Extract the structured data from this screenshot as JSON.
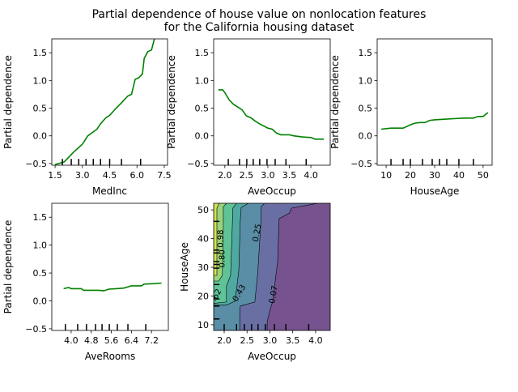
{
  "chart_data": {
    "title": [
      "Partial dependence of house value on nonlocation features",
      "for the California housing dataset"
    ],
    "panels": [
      {
        "type": "line",
        "xlabel": "MedInc",
        "ylabel": "Partial dependence",
        "xlim": [
          1.32,
          7.68
        ],
        "ylim": [
          -0.53,
          1.75
        ],
        "xticks": [
          "1.5",
          "3.0",
          "4.5",
          "6.0",
          "7.5"
        ],
        "yticks": [
          "-0.5",
          "0.0",
          "0.5",
          "1.0",
          "1.5"
        ],
        "color": "#008000",
        "x": [
          1.5,
          2.0,
          2.5,
          3.0,
          3.3,
          3.8,
          4.0,
          4.3,
          4.5,
          4.8,
          5.1,
          5.5,
          5.7,
          5.9,
          6.1,
          6.3,
          6.4,
          6.6,
          6.8,
          7.0
        ],
        "y": [
          -0.52,
          -0.47,
          -0.3,
          -0.15,
          0.0,
          0.12,
          0.22,
          0.33,
          0.37,
          0.48,
          0.58,
          0.72,
          0.75,
          1.02,
          1.05,
          1.12,
          1.4,
          1.52,
          1.55,
          1.8
        ],
        "deciles": [
          1.9,
          2.39,
          2.8,
          3.2,
          3.6,
          4.0,
          4.5,
          5.15,
          6.2
        ]
      },
      {
        "type": "line",
        "xlabel": "AveOccup",
        "ylabel": "Partial dependence",
        "xlim": [
          1.74,
          4.45
        ],
        "ylim": [
          -0.53,
          1.75
        ],
        "xticks": [
          "2.0",
          "2.5",
          "3.0",
          "3.5",
          "4.0"
        ],
        "yticks": [
          "-0.5",
          "0.0",
          "0.5",
          "1.0",
          "1.5"
        ],
        "color": "#008000",
        "x": [
          1.85,
          1.95,
          2.0,
          2.1,
          2.2,
          2.4,
          2.5,
          2.6,
          2.7,
          2.8,
          3.0,
          3.1,
          3.2,
          3.3,
          3.5,
          3.6,
          3.8,
          4.0,
          4.1,
          4.3
        ],
        "y": [
          0.83,
          0.83,
          0.78,
          0.65,
          0.57,
          0.47,
          0.36,
          0.33,
          0.27,
          0.22,
          0.14,
          0.12,
          0.05,
          0.02,
          0.02,
          0.0,
          -0.02,
          -0.03,
          -0.06,
          -0.06
        ],
        "deciles": [
          2.08,
          2.34,
          2.51,
          2.66,
          2.81,
          2.98,
          3.17,
          3.42,
          3.89
        ]
      },
      {
        "type": "line",
        "xlabel": "HouseAge",
        "ylabel": "Partial dependence",
        "xlim": [
          6.3,
          53.7
        ],
        "ylim": [
          -0.53,
          1.75
        ],
        "xticks": [
          "10",
          "20",
          "30",
          "40",
          "50"
        ],
        "yticks": [
          "-0.5",
          "0.0",
          "0.5",
          "1.0",
          "1.5"
        ],
        "color": "#008000",
        "x": [
          8,
          10,
          12,
          17,
          20,
          22,
          24,
          26,
          28,
          30,
          34,
          38,
          42,
          46,
          48,
          50,
          52
        ],
        "y": [
          0.12,
          0.13,
          0.14,
          0.14,
          0.2,
          0.23,
          0.24,
          0.24,
          0.28,
          0.29,
          0.3,
          0.31,
          0.32,
          0.32,
          0.35,
          0.35,
          0.42
        ],
        "deciles": [
          12,
          17,
          20,
          25,
          29,
          32,
          35,
          40,
          46
        ]
      },
      {
        "type": "line",
        "xlabel": "AveRooms",
        "ylabel": "Partial dependence",
        "xlim": [
          3.23,
          7.87
        ],
        "ylim": [
          -0.53,
          1.75
        ],
        "xticks": [
          "4.0",
          "4.8",
          "5.6",
          "6.4",
          "7.2"
        ],
        "yticks": [
          "-0.5",
          "0.0",
          "0.5",
          "1.0",
          "1.5"
        ],
        "color": "#008000",
        "x": [
          3.7,
          3.9,
          4.0,
          4.4,
          4.5,
          4.8,
          5.1,
          5.3,
          5.5,
          5.8,
          6.1,
          6.4,
          6.8,
          6.9,
          7.3,
          7.6
        ],
        "y": [
          0.22,
          0.24,
          0.22,
          0.22,
          0.19,
          0.19,
          0.19,
          0.18,
          0.21,
          0.22,
          0.23,
          0.27,
          0.27,
          0.3,
          0.31,
          0.32
        ],
        "deciles": [
          3.77,
          4.26,
          4.61,
          4.97,
          5.23,
          5.52,
          5.84,
          6.26,
          6.97
        ]
      },
      {
        "type": "contour",
        "xlabel": "AveOccup",
        "ylabel": "HouseAge",
        "xlim": [
          1.77,
          4.32
        ],
        "ylim": [
          8.0,
          52.3
        ],
        "xticks": [
          "2.0",
          "2.5",
          "3.0",
          "3.5",
          "4.0"
        ],
        "yticks": [
          "10",
          "20",
          "30",
          "40",
          "50"
        ],
        "base_color": "#76538f",
        "levels": [
          {
            "value": "0.07",
            "color": "#6a6fa3",
            "boundary": [
              [
                4.05,
                52.3
              ],
              [
                3.47,
                50.6
              ],
              [
                3.43,
                48.9
              ],
              [
                3.2,
                46.9
              ],
              [
                3.17,
                32
              ],
              [
                3.06,
                18
              ],
              [
                3.0,
                15
              ],
              [
                2.94,
                11
              ],
              [
                2.94,
                8
              ]
            ],
            "label_at": [
              3.08,
              20.5
            ]
          },
          {
            "value": "0.25",
            "color": "#5a8ea6",
            "boundary": [
              [
                2.88,
                52.3
              ],
              [
                2.81,
                51.1
              ],
              [
                2.8,
                44.9
              ],
              [
                2.73,
                27.2
              ],
              [
                2.67,
                17.9
              ],
              [
                2.35,
                16.5
              ],
              [
                2.34,
                14
              ],
              [
                2.34,
                8
              ]
            ],
            "label_at": [
              2.72,
              42
            ]
          },
          {
            "value": "0.43",
            "color": "#4fa9a0",
            "boundary": [
              [
                2.53,
                52.3
              ],
              [
                2.37,
                50.8
              ],
              [
                2.35,
                46
              ],
              [
                2.32,
                29.2
              ],
              [
                2.28,
                23.5
              ],
              [
                2.23,
                18.2
              ],
              [
                2.05,
                16.8
              ],
              [
                1.7,
                16.8
              ]
            ],
            "label_at": [
              2.33,
              21
            ]
          },
          {
            "value": "0.62",
            "color": "#60c398",
            "boundary": [
              [
                2.27,
                52.3
              ],
              [
                2.19,
                50.6
              ],
              [
                2.18,
                46
              ],
              [
                2.14,
                27.2
              ],
              [
                2.05,
                23.5
              ],
              [
                2.05,
                17.9
              ],
              [
                1.7,
                17.3
              ]
            ],
            "label_at": [
              1.8,
              19.5
            ]
          },
          {
            "value": "0.80",
            "color": "#98d47a",
            "boundary": [
              [
                2.05,
                52.3
              ],
              [
                1.98,
                51.1
              ],
              [
                1.98,
                44
              ],
              [
                1.96,
                27.2
              ],
              [
                1.88,
                25.2
              ],
              [
                1.7,
                25.2
              ]
            ],
            "label_at": [
              1.96,
              33
            ]
          },
          {
            "value": "0.98",
            "color": "#d6e055",
            "boundary": [
              [
                1.89,
                52.3
              ],
              [
                1.84,
                50.6
              ],
              [
                1.84,
                27.2
              ],
              [
                1.7,
                27.2
              ]
            ],
            "label_at": [
              1.92,
              40
            ]
          }
        ],
        "x_deciles": [
          2.0,
          2.27,
          2.44,
          2.6,
          2.74,
          2.9,
          3.1,
          3.35,
          3.85
        ],
        "y_deciles": [
          12,
          16.5,
          19,
          24,
          29.7,
          31,
          32,
          35,
          36,
          46
        ]
      }
    ]
  }
}
